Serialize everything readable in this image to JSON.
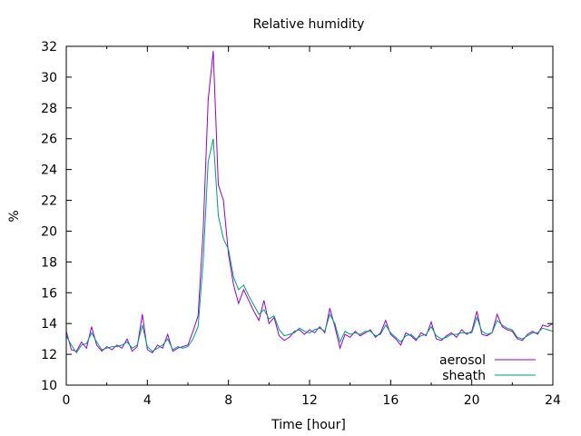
{
  "chart_data": {
    "type": "line",
    "title": "Relative humidity",
    "xlabel": "Time [hour]",
    "ylabel": "%",
    "xlim": [
      0,
      24
    ],
    "ylim": [
      10,
      32
    ],
    "xticks": [
      0,
      4,
      8,
      12,
      16,
      20,
      24
    ],
    "yticks": [
      10,
      12,
      14,
      16,
      18,
      20,
      22,
      24,
      26,
      28,
      30,
      32
    ],
    "grid": false,
    "legend_position": "bottom-right",
    "x_start": 0,
    "x_step": 0.25,
    "series": [
      {
        "name": "aerosol",
        "color": "#9400d3",
        "values": [
          13.5,
          12.3,
          12.2,
          12.8,
          12.4,
          13.8,
          12.6,
          12.2,
          12.5,
          12.3,
          12.6,
          12.4,
          13.0,
          12.2,
          12.5,
          14.6,
          12.3,
          12.1,
          12.6,
          12.4,
          13.3,
          12.2,
          12.4,
          12.5,
          12.6,
          13.5,
          14.5,
          20.0,
          28.5,
          31.7,
          23.0,
          22.0,
          18.5,
          16.5,
          15.3,
          16.2,
          15.5,
          14.8,
          14.2,
          15.5,
          14.0,
          14.4,
          13.2,
          12.9,
          13.1,
          13.5,
          13.6,
          13.3,
          13.6,
          13.4,
          13.8,
          13.4,
          15.0,
          13.8,
          12.4,
          13.3,
          13.1,
          13.5,
          13.2,
          13.4,
          13.6,
          13.1,
          13.4,
          14.2,
          13.3,
          13.0,
          12.6,
          13.4,
          13.2,
          12.9,
          13.4,
          13.2,
          14.1,
          13.0,
          12.9,
          13.2,
          13.4,
          13.1,
          13.6,
          13.3,
          13.5,
          14.8,
          13.3,
          13.2,
          13.4,
          14.6,
          13.8,
          13.6,
          13.5,
          13.0,
          12.9,
          13.3,
          13.5,
          13.3,
          13.9,
          13.8,
          14.0
        ]
      },
      {
        "name": "sheath",
        "color": "#009e73",
        "values": [
          13.2,
          12.6,
          12.1,
          12.6,
          12.7,
          13.4,
          12.8,
          12.3,
          12.4,
          12.5,
          12.5,
          12.6,
          12.8,
          12.4,
          12.6,
          13.9,
          12.5,
          12.2,
          12.4,
          12.6,
          13.0,
          12.3,
          12.5,
          12.4,
          12.5,
          13.0,
          13.8,
          18.0,
          24.5,
          26.0,
          21.0,
          19.5,
          18.8,
          17.0,
          16.2,
          16.5,
          15.8,
          15.2,
          14.6,
          14.9,
          14.3,
          14.5,
          13.6,
          13.2,
          13.3,
          13.4,
          13.7,
          13.5,
          13.4,
          13.6,
          13.7,
          13.5,
          14.6,
          14.0,
          12.8,
          13.5,
          13.3,
          13.4,
          13.3,
          13.5,
          13.5,
          13.2,
          13.3,
          13.9,
          13.4,
          13.1,
          12.8,
          13.2,
          13.3,
          13.0,
          13.2,
          13.3,
          13.8,
          13.2,
          13.0,
          13.1,
          13.3,
          13.3,
          13.4,
          13.4,
          13.4,
          14.4,
          13.5,
          13.3,
          13.4,
          14.2,
          13.9,
          13.7,
          13.6,
          13.1,
          13.0,
          13.2,
          13.4,
          13.4,
          13.7,
          13.6,
          13.5
        ]
      }
    ]
  }
}
